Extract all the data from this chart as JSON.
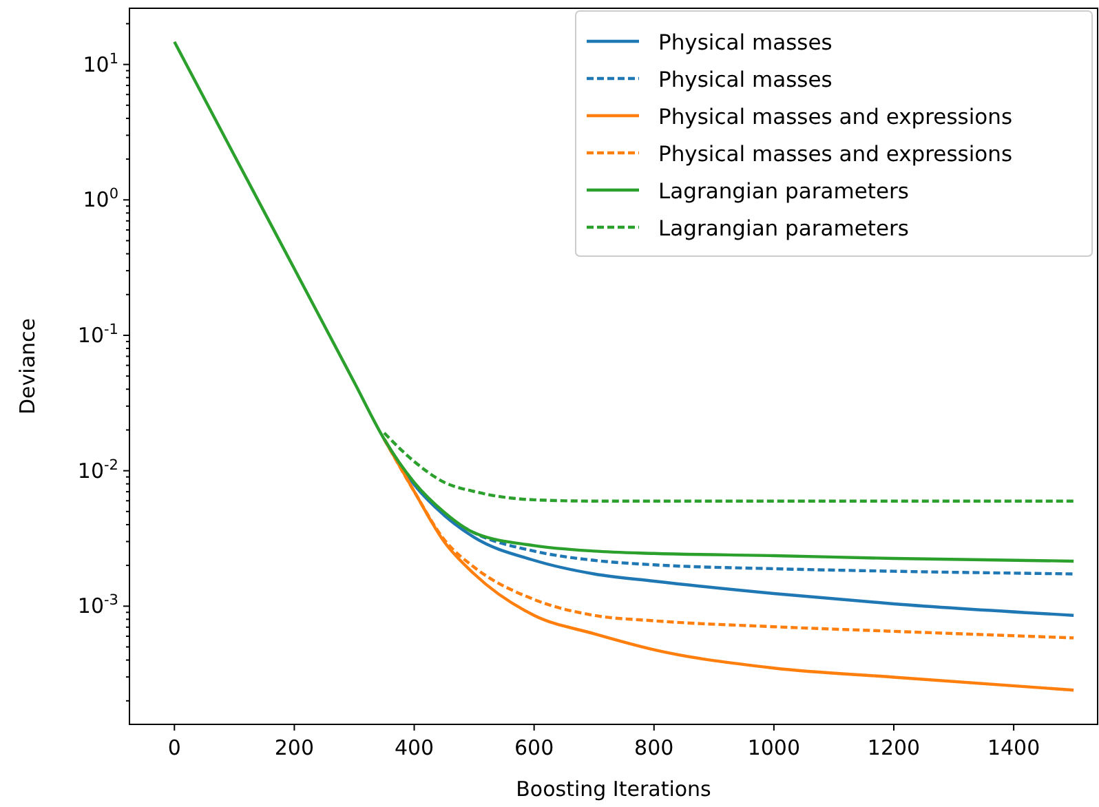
{
  "chart_data": {
    "type": "line",
    "xlabel": "Boosting Iterations",
    "ylabel": "Deviance",
    "log": "y",
    "grid": false,
    "legend": "top right",
    "xlim": [
      -75,
      1540
    ],
    "xticks": [
      0,
      200,
      400,
      600,
      800,
      1000,
      1200,
      1400
    ],
    "ylim": [
      0.000134,
      26
    ],
    "yticks": [
      {
        "value": 0.001,
        "label": "10$^{-3}$"
      },
      {
        "value": 0.01,
        "label": "10$^{-2}$"
      },
      {
        "value": 0.1,
        "label": "10$^{-1}$"
      },
      {
        "value": 1,
        "label": "10$^{0}$"
      },
      {
        "value": 10,
        "label": "10$^{1}$"
      },
      {
        "value": 0.0002,
        "label": null
      },
      {
        "value": 0.0003,
        "label": null
      },
      {
        "value": 0.0004,
        "label": null
      },
      {
        "value": 0.0005,
        "label": null
      },
      {
        "value": 0.0006,
        "label": null
      },
      {
        "value": 0.0007,
        "label": null
      },
      {
        "value": 0.0008,
        "label": null
      },
      {
        "value": 0.0009,
        "label": null
      },
      {
        "value": 0.002,
        "label": null
      },
      {
        "value": 0.003,
        "label": null
      },
      {
        "value": 0.004,
        "label": null
      },
      {
        "value": 0.005,
        "label": null
      },
      {
        "value": 0.006,
        "label": null
      },
      {
        "value": 0.007,
        "label": null
      },
      {
        "value": 0.008,
        "label": null
      },
      {
        "value": 0.009,
        "label": null
      },
      {
        "value": 0.02,
        "label": null
      },
      {
        "value": 0.03,
        "label": null
      },
      {
        "value": 0.04,
        "label": null
      },
      {
        "value": 0.05,
        "label": null
      },
      {
        "value": 0.06,
        "label": null
      },
      {
        "value": 0.07,
        "label": null
      },
      {
        "value": 0.08,
        "label": null
      },
      {
        "value": 0.09,
        "label": null
      },
      {
        "value": 0.2,
        "label": null
      },
      {
        "value": 0.3,
        "label": null
      },
      {
        "value": 0.4,
        "label": null
      },
      {
        "value": 0.5,
        "label": null
      },
      {
        "value": 0.6,
        "label": null
      },
      {
        "value": 0.7,
        "label": null
      },
      {
        "value": 0.8,
        "label": null
      },
      {
        "value": 0.9,
        "label": null
      },
      {
        "value": 2,
        "label": null
      },
      {
        "value": 3,
        "label": null
      },
      {
        "value": 4,
        "label": null
      },
      {
        "value": 5,
        "label": null
      },
      {
        "value": 6,
        "label": null
      },
      {
        "value": 7,
        "label": null
      },
      {
        "value": 8,
        "label": null
      },
      {
        "value": 9,
        "label": null
      },
      {
        "value": 20,
        "label": null
      }
    ],
    "x": [
      0,
      100,
      200,
      300,
      350,
      400,
      450,
      500,
      600,
      700,
      800,
      1000,
      1200,
      1500
    ],
    "series": [
      {
        "name": "Physical masses",
        "color": "#1f77b4",
        "line_style": "solid",
        "values": [
          null,
          null,
          null,
          null,
          0.0171,
          0.00789,
          0.00469,
          0.00322,
          0.00218,
          0.00173,
          0.00153,
          0.00124,
          0.00104,
          0.000855
        ]
      },
      {
        "name": "Physical masses",
        "color": "#1f77b4",
        "line_style": "dashed",
        "values": [
          null,
          null,
          null,
          null,
          null,
          null,
          0.00469,
          0.00348,
          0.00255,
          0.00218,
          0.00202,
          0.00189,
          0.00181,
          0.00173
        ]
      },
      {
        "name": "Physical masses and expressions",
        "color": "#ff7f0e",
        "line_style": "solid",
        "values": [
          null,
          null,
          null,
          null,
          0.0171,
          0.00703,
          0.00299,
          0.00173,
          0.000855,
          0.000626,
          0.000477,
          0.000349,
          0.000299,
          0.00024
        ]
      },
      {
        "name": "Physical masses and expressions",
        "color": "#ff7f0e",
        "line_style": "dashed",
        "values": [
          null,
          null,
          null,
          null,
          0.0171,
          0.00703,
          0.0031,
          0.00194,
          0.00112,
          0.000855,
          0.00078,
          0.000705,
          0.000652,
          0.000583
        ]
      },
      {
        "name": "Lagrangian parameters",
        "color": "#2ca02c",
        "line_style": "solid",
        "values": [
          14.7,
          2.13,
          0.31,
          0.045,
          0.0171,
          0.0082,
          0.00494,
          0.00348,
          0.0028,
          0.00255,
          0.00245,
          0.00236,
          0.00225,
          0.00215
        ]
      },
      {
        "name": "Lagrangian parameters",
        "color": "#2ca02c",
        "line_style": "dashed",
        "values": [
          null,
          null,
          null,
          null,
          0.019,
          0.0117,
          0.00822,
          0.00703,
          0.0061,
          0.00597,
          0.00597,
          0.00597,
          0.00597,
          0.00597
        ]
      }
    ]
  }
}
